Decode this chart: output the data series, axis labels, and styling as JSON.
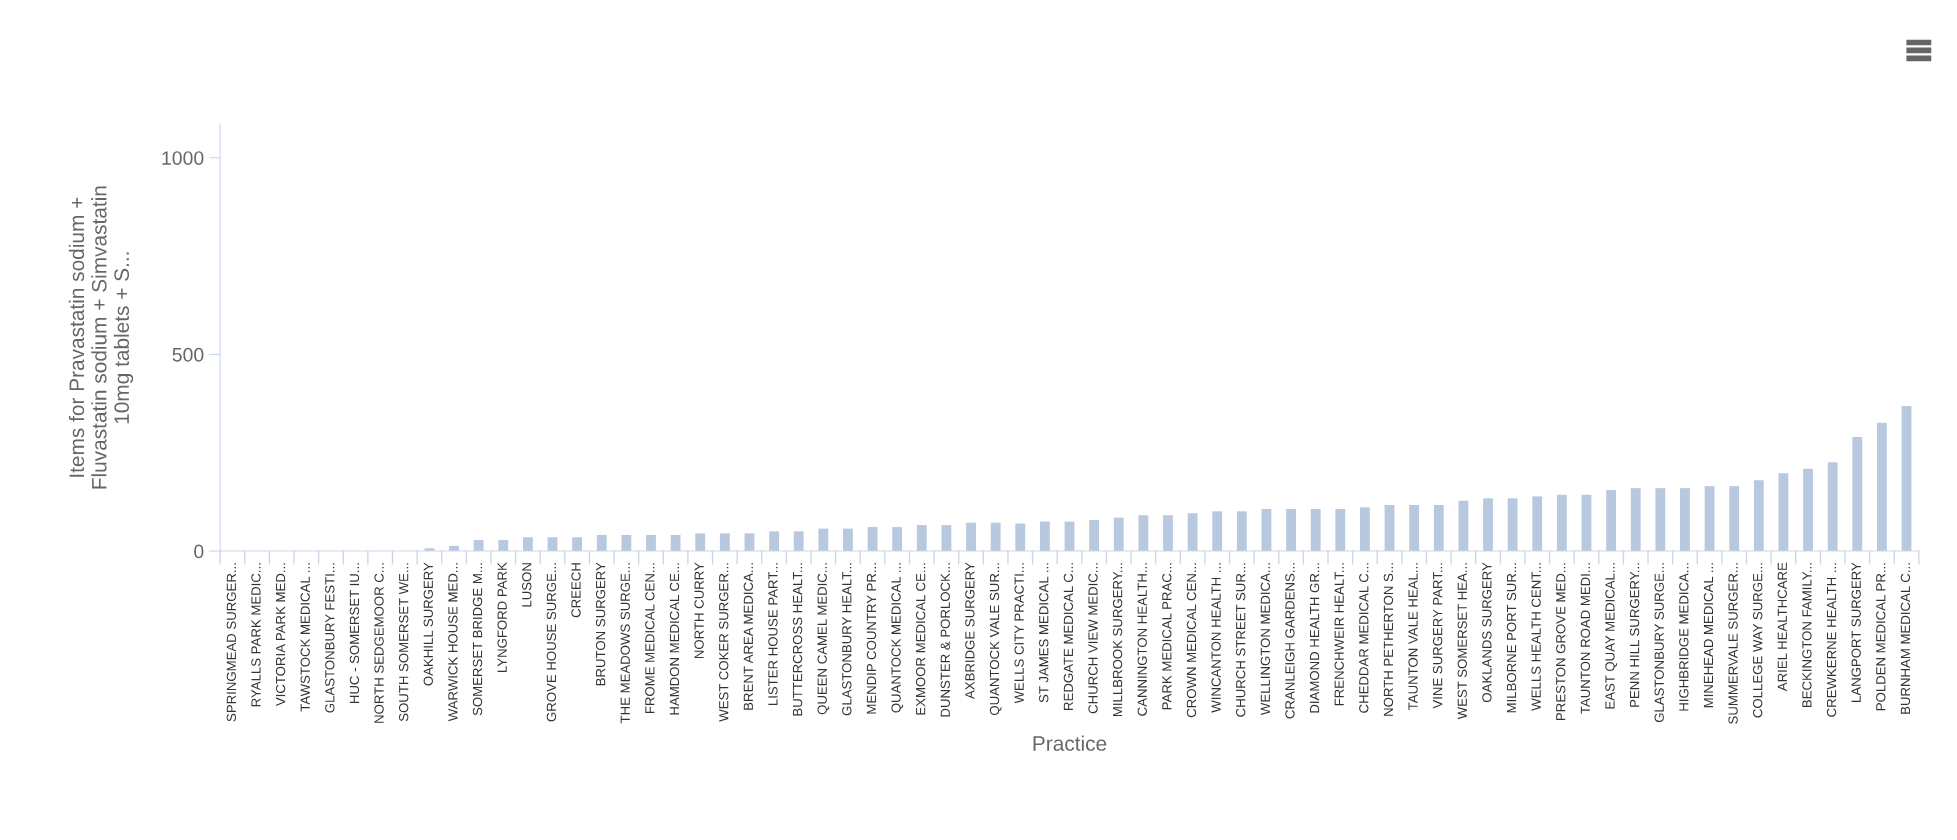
{
  "chart_data": {
    "type": "bar",
    "xlabel": "Practice",
    "ylabel": "Items for Pravastatin sodium +\nFluvastatin sodium + Simvastatin\n10mg tablets + S...",
    "categories": [
      "SPRINGMEAD SURGER...",
      "RYALLS PARK MEDIC...",
      "VICTORIA PARK MED...",
      "TAWSTOCK MEDICAL ...",
      "GLASTONBURY FESTI...",
      "HUC - SOMERSET IU...",
      "NORTH SEDGEMOOR C...",
      "SOUTH SOMERSET WE...",
      "OAKHILL SURGERY",
      "WARWICK HOUSE MED...",
      "SOMERSET BRIDGE M...",
      "LYNGFORD PARK",
      "LUSON",
      "GROVE HOUSE SURGE...",
      "CREECH",
      "BRUTON SURGERY",
      "THE MEADOWS SURGE...",
      "FROME MEDICAL CEN...",
      "HAMDON MEDICAL CE...",
      "NORTH CURRY",
      "WEST COKER SURGER...",
      "BRENT AREA MEDICA...",
      "LISTER HOUSE PART...",
      "BUTTERCROSS HEALT...",
      "QUEEN CAMEL MEDIC...",
      "GLASTONBURY HEALT...",
      "MENDIP COUNTRY PR...",
      "QUANTOCK MEDICAL ...",
      "EXMOOR MEDICAL CE...",
      "DUNSTER & PORLOCK...",
      "AXBRIDGE SURGERY",
      "QUANTOCK VALE SUR...",
      "WELLS CITY PRACTI...",
      "ST JAMES MEDICAL ...",
      "REDGATE MEDICAL C...",
      "CHURCH VIEW MEDIC...",
      "MILLBROOK SURGERY...",
      "CANNINGTON HEALTH...",
      "PARK MEDICAL PRAC...",
      "CROWN MEDICAL CEN...",
      "WINCANTON HEALTH ...",
      "CHURCH STREET SUR...",
      "WELLINGTON MEDICA...",
      "CRANLEIGH GARDENS...",
      "DIAMOND HEALTH GR...",
      "FRENCHWEIR HEALT...",
      "CHEDDAR MEDICAL C...",
      "NORTH PETHERTON S...",
      "TAUNTON VALE HEAL...",
      "VINE SURGERY PART...",
      "WEST SOMERSET HEA...",
      "OAKLANDS SURGERY",
      "MILBORNE PORT SUR...",
      "WELLS HEALTH CENT...",
      "PRESTON GROVE MED...",
      "TAUNTON ROAD MEDI...",
      "EAST QUAY MEDICAL...",
      "PENN HILL SURGERY...",
      "GLASTONBURY SURGE...",
      "HIGHBRIDGE MEDICA...",
      "MINEHEAD MEDICAL ...",
      "SUMMERVALE SURGER...",
      "COLLEGE WAY SURGE...",
      "ARIEL HEALTHCARE",
      "BECKINGTON FAMILY...",
      "CREWKERNE HEALTH ...",
      "LANGPORT SURGERY",
      "POLDEN MEDICAL PR...",
      "BURNHAM MEDICAL C..."
    ],
    "values": [
      0,
      0,
      0,
      0,
      0,
      0,
      0,
      0,
      7,
      13,
      28,
      28,
      35,
      35,
      35,
      41,
      41,
      41,
      41,
      45,
      45,
      45,
      50,
      50,
      57,
      57,
      61,
      61,
      66,
      66,
      72,
      72,
      70,
      75,
      75,
      79,
      85,
      91,
      91,
      96,
      101,
      101,
      107,
      107,
      107,
      107,
      111,
      117,
      117,
      117,
      128,
      134,
      134,
      139,
      143,
      143,
      155,
      160,
      160,
      160,
      165,
      165,
      180,
      198,
      209,
      226,
      290,
      326,
      369
    ],
    "color": "#b8c9df",
    "ylim": [
      0,
      1085
    ],
    "yticks": [
      0,
      500,
      1000
    ],
    "grid": false,
    "legend": false
  }
}
